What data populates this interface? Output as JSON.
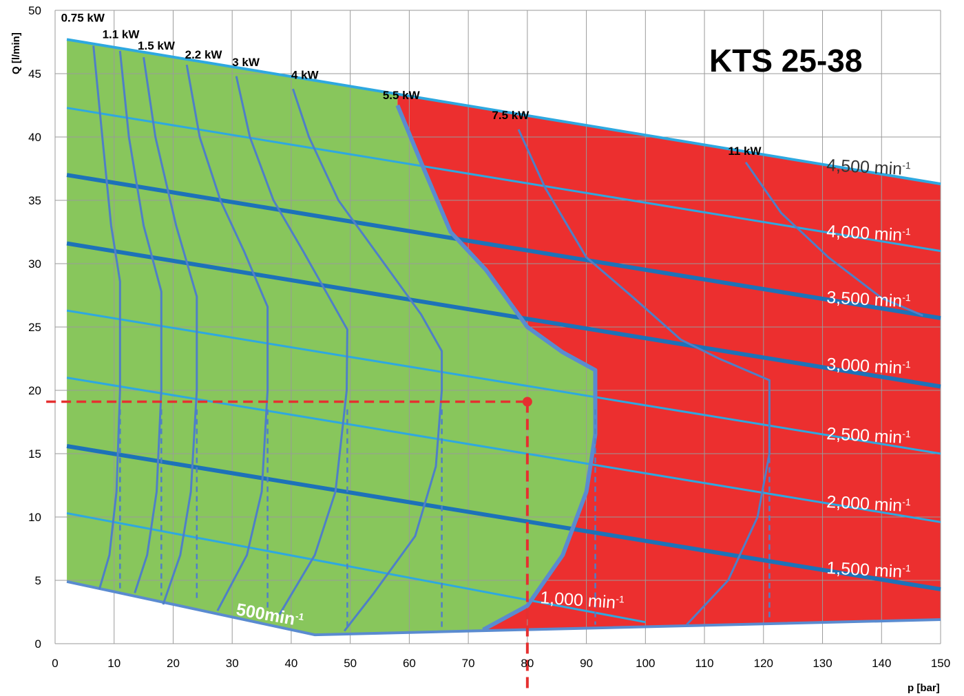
{
  "chart_data": {
    "type": "line",
    "title": "KTS 25-38",
    "xlabel": "p [bar]",
    "ylabel": "Q [l/min]",
    "xlim": [
      0,
      150
    ],
    "ylim": [
      0,
      50
    ],
    "xticks": [
      0,
      10,
      20,
      30,
      40,
      50,
      60,
      70,
      80,
      90,
      100,
      110,
      120,
      130,
      140,
      150
    ],
    "yticks": [
      0,
      5,
      10,
      15,
      20,
      25,
      30,
      35,
      40,
      45,
      50
    ],
    "grid": true,
    "colors": {
      "green_region": "#88c65c",
      "red_region": "#ec2f2f",
      "speed_line": "#2ea8e0",
      "speed_line_bold": "#1d72b8",
      "power_curve": "#4f7fc7",
      "boundary": "#5a8bd0",
      "operating_point": "#e53030",
      "grid": "#9a9a9a"
    },
    "speed_curves": [
      {
        "label": "4,500",
        "unit": "min",
        "sup": "-1",
        "bold": false,
        "points": [
          [
            2,
            47.7
          ],
          [
            150,
            36.3
          ]
        ]
      },
      {
        "label": "",
        "bold": false,
        "points": [
          [
            2,
            42.3
          ],
          [
            150,
            31.0
          ]
        ]
      },
      {
        "label": "4,000",
        "unit": "min",
        "sup": "-1",
        "bold": false,
        "points": [
          [
            2,
            42.3
          ],
          [
            150,
            31.0
          ]
        ]
      },
      {
        "label": "3,500",
        "unit": "min",
        "sup": "-1",
        "bold": true,
        "points": [
          [
            2,
            37.0
          ],
          [
            150,
            25.7
          ]
        ]
      },
      {
        "label": "3,000",
        "unit": "min",
        "sup": "-1",
        "bold": true,
        "points": [
          [
            2,
            31.6
          ],
          [
            150,
            20.3
          ]
        ]
      },
      {
        "label": "2,500",
        "unit": "min",
        "sup": "-1",
        "bold": false,
        "points": [
          [
            2,
            26.3
          ],
          [
            150,
            15.0
          ]
        ]
      },
      {
        "label": "2,000",
        "unit": "min",
        "sup": "-1",
        "bold": false,
        "points": [
          [
            2,
            21.0
          ],
          [
            150,
            9.6
          ]
        ]
      },
      {
        "label": "1,500",
        "unit": "min",
        "sup": "-1",
        "bold": true,
        "points": [
          [
            2,
            15.6
          ],
          [
            150,
            4.3
          ]
        ]
      },
      {
        "label": "",
        "bold": false,
        "points": [
          [
            2,
            10.3
          ],
          [
            100,
            1.7
          ]
        ]
      },
      {
        "label": "1,000",
        "unit": "min",
        "sup": "-1",
        "bold": false,
        "points": [
          [
            2,
            10.3
          ],
          [
            100,
            1.7
          ]
        ]
      }
    ],
    "power_curves": [
      {
        "label": "0.75 kW",
        "points": [
          [
            6.5,
            47.2
          ],
          [
            8,
            40
          ],
          [
            9.5,
            33
          ],
          [
            11,
            28.6
          ],
          [
            11,
            20
          ],
          [
            10.4,
            12
          ],
          [
            9.2,
            7
          ],
          [
            7.5,
            4.3
          ]
        ],
        "dashed": [
          [
            11,
            18.5
          ],
          [
            11,
            4.0
          ]
        ]
      },
      {
        "label": "1.1 kW",
        "points": [
          [
            11,
            46.8
          ],
          [
            12.5,
            40
          ],
          [
            15,
            33
          ],
          [
            18,
            27.8
          ],
          [
            18,
            20
          ],
          [
            17.2,
            12
          ],
          [
            15.6,
            7
          ],
          [
            13.5,
            4.0
          ]
        ],
        "dashed": [
          [
            18,
            18.5
          ],
          [
            18,
            3.8
          ]
        ]
      },
      {
        "label": "1.5 kW",
        "points": [
          [
            15,
            46.3
          ],
          [
            17,
            40
          ],
          [
            20.5,
            33
          ],
          [
            24,
            27.4
          ],
          [
            24,
            20
          ],
          [
            23,
            12
          ],
          [
            21.2,
            7
          ],
          [
            18.3,
            3.1
          ]
        ],
        "dashed": [
          [
            24,
            18.5
          ],
          [
            24,
            3.3
          ]
        ]
      },
      {
        "label": "2.2 kW",
        "points": [
          [
            22.3,
            45.7
          ],
          [
            24.5,
            40
          ],
          [
            28,
            35
          ],
          [
            32,
            31
          ],
          [
            36,
            26.6
          ],
          [
            36,
            20
          ],
          [
            35,
            12
          ],
          [
            32.5,
            7
          ],
          [
            27.5,
            2.6
          ]
        ],
        "dashed": [
          [
            36,
            18.5
          ],
          [
            36,
            2.5
          ]
        ]
      },
      {
        "label": "3 kW",
        "points": [
          [
            30.7,
            44.8
          ],
          [
            33,
            40
          ],
          [
            37,
            35
          ],
          [
            42,
            31
          ],
          [
            49.5,
            24.8
          ],
          [
            49.4,
            20
          ],
          [
            47.5,
            12
          ],
          [
            44,
            7
          ],
          [
            38,
            2.3
          ]
        ],
        "dashed": [
          [
            49.5,
            18.5
          ],
          [
            49.5,
            1.2
          ]
        ]
      },
      {
        "label": "4 kW",
        "points": [
          [
            40.3,
            43.8
          ],
          [
            43,
            40
          ],
          [
            48,
            35
          ],
          [
            55,
            30.5
          ],
          [
            62,
            26
          ],
          [
            65.5,
            23.1
          ],
          [
            65.5,
            20
          ],
          [
            64.5,
            14
          ],
          [
            61,
            8.5
          ],
          [
            54,
            4
          ],
          [
            49,
            1.0
          ]
        ],
        "dashed": [
          [
            65.5,
            18.5
          ],
          [
            65.5,
            1.2
          ]
        ]
      },
      {
        "label": "7.5 kW",
        "points": [
          [
            78.5,
            40.6
          ],
          [
            83,
            36
          ],
          [
            90,
            30.5
          ],
          [
            98,
            27.3
          ],
          [
            106,
            24
          ],
          [
            112.5,
            22.5
          ],
          [
            121,
            20.8
          ],
          [
            121,
            15
          ],
          [
            119,
            10
          ],
          [
            114,
            5
          ],
          [
            107,
            1.5
          ]
        ],
        "dashed": [
          [
            121,
            18.5
          ],
          [
            121,
            2.0
          ]
        ]
      },
      {
        "label": "11 kW",
        "points": [
          [
            117,
            38.0
          ],
          [
            123,
            34
          ],
          [
            131,
            30.5
          ],
          [
            140,
            27.3
          ],
          [
            147,
            25.9
          ]
        ]
      }
    ],
    "boundary_5_5kW": {
      "label": "5.5 kW",
      "points": [
        [
          58,
          42.5
        ],
        [
          62,
          38
        ],
        [
          67,
          32.5
        ],
        [
          73,
          29.5
        ],
        [
          80,
          25
        ],
        [
          86,
          23
        ],
        [
          91.5,
          21.6
        ],
        [
          91.5,
          16.5
        ],
        [
          90,
          12
        ],
        [
          86,
          7
        ],
        [
          80,
          3
        ],
        [
          72.5,
          1.1
        ]
      ]
    },
    "annotations": [
      {
        "label": "500min",
        "sup": "-1",
        "x": 40,
        "y": 2.6
      },
      {
        "label": "1,000",
        "unit": "min",
        "sup": "-1",
        "x": 100,
        "y": 3.3
      }
    ],
    "operating_point": {
      "x": 80,
      "y": 19.1
    },
    "region_outline": {
      "top": [
        [
          2,
          47.7
        ],
        [
          150,
          36.3
        ]
      ],
      "bottom": [
        [
          2,
          4.9
        ],
        [
          44,
          0.7
        ],
        [
          150,
          1.9
        ]
      ],
      "left": [
        [
          2,
          47.7
        ],
        [
          2,
          4.9
        ]
      ]
    }
  },
  "title": "KTS 25-38",
  "xlabel": "p [bar]",
  "ylabel": "Q [l/min]"
}
